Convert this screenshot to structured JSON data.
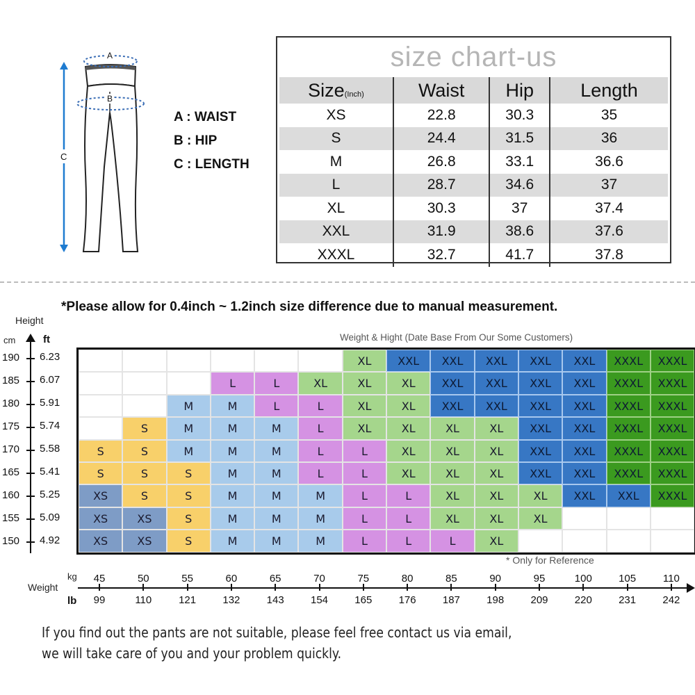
{
  "diagram": {
    "labels": {
      "a": "A",
      "b": "B",
      "c": "C"
    },
    "legend": [
      {
        "key": "A",
        "text": "A : WAIST"
      },
      {
        "key": "B",
        "text": "B : HIP"
      },
      {
        "key": "C",
        "text": "C : LENGTH"
      }
    ],
    "arrow_color": "#1e7bd0"
  },
  "size_table": {
    "title": "size chart-us",
    "headers": {
      "size": "Size",
      "unit": "(Inch)",
      "waist": "Waist",
      "hip": "Hip",
      "length": "Length"
    },
    "rows": [
      {
        "size": "XS",
        "waist": "22.8",
        "hip": "30.3",
        "length": "35"
      },
      {
        "size": "S",
        "waist": "24.4",
        "hip": "31.5",
        "length": "36"
      },
      {
        "size": "M",
        "waist": "26.8",
        "hip": "33.1",
        "length": "36.6"
      },
      {
        "size": "L",
        "waist": "28.7",
        "hip": "34.6",
        "length": "37"
      },
      {
        "size": "XL",
        "waist": "30.3",
        "hip": "37",
        "length": "37.4"
      },
      {
        "size": "XXL",
        "waist": "31.9",
        "hip": "38.6",
        "length": "37.6"
      },
      {
        "size": "XXXL",
        "waist": "32.7",
        "hip": "41.7",
        "length": "37.8"
      }
    ]
  },
  "notice": "*Please allow for 0.4inch ~ 1.2inch size difference due to manual measurement.",
  "chart": {
    "caption": "Weight & Hight (Date Base From Our Some Customers)",
    "reference_note": "* Only for Reference",
    "y_axis": {
      "title": "Height",
      "unit_left": "cm",
      "unit_right": "ft",
      "ticks": [
        {
          "cm": "190",
          "ft": "6.23"
        },
        {
          "cm": "185",
          "ft": "6.07"
        },
        {
          "cm": "180",
          "ft": "5.91"
        },
        {
          "cm": "175",
          "ft": "5.74"
        },
        {
          "cm": "170",
          "ft": "5.58"
        },
        {
          "cm": "165",
          "ft": "5.41"
        },
        {
          "cm": "160",
          "ft": "5.25"
        },
        {
          "cm": "155",
          "ft": "5.09"
        },
        {
          "cm": "150",
          "ft": "4.92"
        }
      ]
    },
    "x_axis": {
      "title": "Weight",
      "unit_top": "kg",
      "unit_bottom": "lb",
      "ticks": [
        {
          "kg": "45",
          "lb": "99"
        },
        {
          "kg": "50",
          "lb": "110"
        },
        {
          "kg": "55",
          "lb": "121"
        },
        {
          "kg": "60",
          "lb": "132"
        },
        {
          "kg": "65",
          "lb": "143"
        },
        {
          "kg": "70",
          "lb": "154"
        },
        {
          "kg": "75",
          "lb": "165"
        },
        {
          "kg": "80",
          "lb": "176"
        },
        {
          "kg": "85",
          "lb": "187"
        },
        {
          "kg": "90",
          "lb": "198"
        },
        {
          "kg": "95",
          "lb": "209"
        },
        {
          "kg": "100",
          "lb": "220"
        },
        {
          "kg": "105",
          "lb": "231"
        },
        {
          "kg": "110",
          "lb": "242"
        }
      ]
    },
    "grid": [
      [
        "",
        "",
        "",
        "",
        "",
        "",
        "XL",
        "XXL",
        "XXL",
        "XXL",
        "XXL",
        "XXL",
        "XXXL",
        "XXXL"
      ],
      [
        "",
        "",
        "",
        "L",
        "L",
        "XL",
        "XL",
        "XL",
        "XXL",
        "XXL",
        "XXL",
        "XXL",
        "XXXL",
        "XXXL"
      ],
      [
        "",
        "",
        "M",
        "M",
        "L",
        "L",
        "XL",
        "XL",
        "XXL",
        "XXL",
        "XXL",
        "XXL",
        "XXXL",
        "XXXL"
      ],
      [
        "",
        "S",
        "M",
        "M",
        "M",
        "L",
        "XL",
        "XL",
        "XL",
        "XL",
        "XXL",
        "XXL",
        "XXXL",
        "XXXL"
      ],
      [
        "S",
        "S",
        "M",
        "M",
        "M",
        "L",
        "L",
        "XL",
        "XL",
        "XL",
        "XXL",
        "XXL",
        "XXXL",
        "XXXL"
      ],
      [
        "S",
        "S",
        "S",
        "M",
        "M",
        "L",
        "L",
        "XL",
        "XL",
        "XL",
        "XXL",
        "XXL",
        "XXXL",
        "XXXL"
      ],
      [
        "XS",
        "S",
        "S",
        "M",
        "M",
        "M",
        "L",
        "L",
        "XL",
        "XL",
        "XL",
        "XXL",
        "XXL",
        "XXXL"
      ],
      [
        "XS",
        "XS",
        "S",
        "M",
        "M",
        "M",
        "L",
        "L",
        "XL",
        "XL",
        "XL",
        "",
        "",
        ""
      ],
      [
        "XS",
        "XS",
        "S",
        "M",
        "M",
        "M",
        "L",
        "L",
        "L",
        "XL",
        "",
        "",
        "",
        ""
      ]
    ],
    "colors": {
      "XS": "#7e9cc6",
      "S": "#f8d06a",
      "M": "#a8cbeb",
      "L": "#d592e3",
      "XL": "#a5d68c",
      "XXL": "#3777c4",
      "XXXL": "#3b9a1f"
    }
  },
  "chart_data": {
    "type": "heatmap",
    "title": "Weight & Hight (Date Base From Our Some Customers)",
    "xlabel": "Weight (kg / lb)",
    "ylabel": "Height (cm / ft)",
    "x": [
      45,
      50,
      55,
      60,
      65,
      70,
      75,
      80,
      85,
      90,
      95,
      100,
      105,
      110
    ],
    "x_lb": [
      99,
      110,
      121,
      132,
      143,
      154,
      165,
      176,
      187,
      198,
      209,
      220,
      231,
      242
    ],
    "y": [
      190,
      185,
      180,
      175,
      170,
      165,
      160,
      155,
      150
    ],
    "y_ft": [
      6.23,
      6.07,
      5.91,
      5.74,
      5.58,
      5.41,
      5.25,
      5.09,
      4.92
    ],
    "values": [
      [
        "",
        "",
        "",
        "",
        "",
        "",
        "XL",
        "XXL",
        "XXL",
        "XXL",
        "XXL",
        "XXL",
        "XXXL",
        "XXXL"
      ],
      [
        "",
        "",
        "",
        "L",
        "L",
        "XL",
        "XL",
        "XL",
        "XXL",
        "XXL",
        "XXL",
        "XXL",
        "XXXL",
        "XXXL"
      ],
      [
        "",
        "",
        "M",
        "M",
        "L",
        "L",
        "XL",
        "XL",
        "XXL",
        "XXL",
        "XXL",
        "XXL",
        "XXXL",
        "XXXL"
      ],
      [
        "",
        "S",
        "M",
        "M",
        "M",
        "L",
        "XL",
        "XL",
        "XL",
        "XL",
        "XXL",
        "XXL",
        "XXXL",
        "XXXL"
      ],
      [
        "S",
        "S",
        "M",
        "M",
        "M",
        "L",
        "L",
        "XL",
        "XL",
        "XL",
        "XXL",
        "XXL",
        "XXXL",
        "XXXL"
      ],
      [
        "S",
        "S",
        "S",
        "M",
        "M",
        "L",
        "L",
        "XL",
        "XL",
        "XL",
        "XXL",
        "XXL",
        "XXXL",
        "XXXL"
      ],
      [
        "XS",
        "S",
        "S",
        "M",
        "M",
        "M",
        "L",
        "L",
        "XL",
        "XL",
        "XL",
        "XXL",
        "XXL",
        "XXXL"
      ],
      [
        "XS",
        "XS",
        "S",
        "M",
        "M",
        "M",
        "L",
        "L",
        "XL",
        "XL",
        "XL",
        "",
        "",
        ""
      ],
      [
        "XS",
        "XS",
        "S",
        "M",
        "M",
        "M",
        "L",
        "L",
        "L",
        "XL",
        "",
        "",
        "",
        ""
      ]
    ],
    "annotations": [
      "* Only for Reference"
    ],
    "grid": true
  },
  "footer": {
    "line1": "If you find out the pants are not suitable, please feel free contact us via email,",
    "line2": "we will take care of you and your problem quickly."
  }
}
